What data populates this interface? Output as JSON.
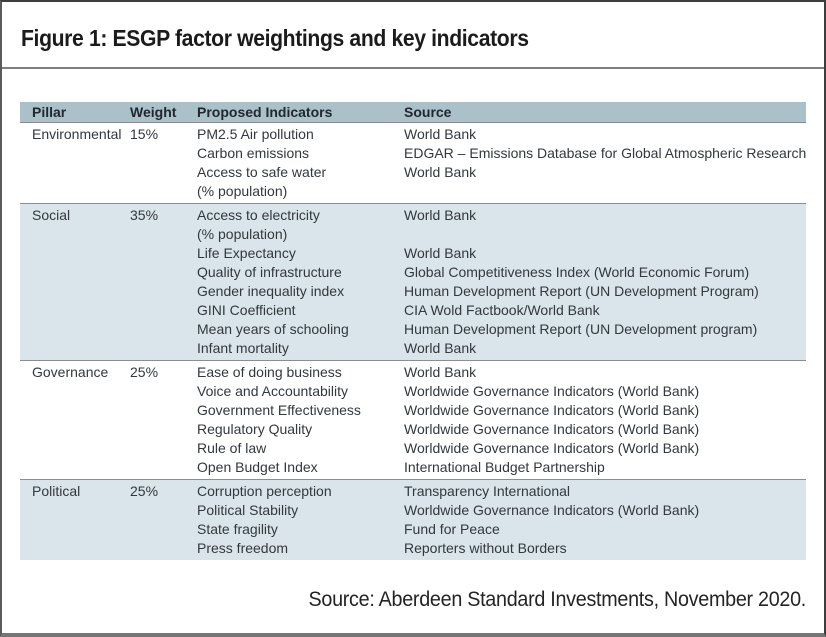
{
  "figure": {
    "title": "Figure 1: ESGP factor weightings and key indicators",
    "source_note": "Source: Aberdeen Standard Investments, November 2020."
  },
  "colors": {
    "header_band": "#aac1ca",
    "shaded_row": "#d9e5ea",
    "divider": "#8d8d8d",
    "body_text": "#33383d",
    "frame_border": "#3d3d3d"
  },
  "table": {
    "columns": [
      "Pillar",
      "Weight",
      "Proposed Indicators",
      "Source"
    ],
    "sections": [
      {
        "pillar": "Environmental",
        "weight": "15%",
        "shaded": false,
        "rows": [
          {
            "indicator": "PM2.5 Air pollution",
            "source": "World Bank"
          },
          {
            "indicator": "Carbon emissions",
            "source": "EDGAR – Emissions Database for Global Atmospheric Research"
          },
          {
            "indicator": "Access to safe water",
            "source": "World Bank"
          },
          {
            "indicator": "(% population)",
            "source": ""
          }
        ]
      },
      {
        "pillar": "Social",
        "weight": "35%",
        "shaded": true,
        "rows": [
          {
            "indicator": "Access to electricity",
            "source": "World Bank"
          },
          {
            "indicator": "(% population)",
            "source": ""
          },
          {
            "indicator": "Life Expectancy",
            "source": "World Bank"
          },
          {
            "indicator": "Quality of infrastructure",
            "source": "Global Competitiveness Index (World Economic Forum)"
          },
          {
            "indicator": "Gender inequality index",
            "source": "Human Development Report (UN Development Program)"
          },
          {
            "indicator": "GINI Coefficient",
            "source": "CIA Wold Factbook/World Bank"
          },
          {
            "indicator": "Mean years of schooling",
            "source": "Human Development Report (UN Development program)"
          },
          {
            "indicator": "Infant mortality",
            "source": "World Bank"
          }
        ]
      },
      {
        "pillar": "Governance",
        "weight": "25%",
        "shaded": false,
        "rows": [
          {
            "indicator": "Ease of doing business",
            "source": "World Bank"
          },
          {
            "indicator": "Voice and Accountability",
            "source": "Worldwide Governance Indicators (World Bank)"
          },
          {
            "indicator": "Government Effectiveness",
            "source": "Worldwide Governance Indicators (World Bank)"
          },
          {
            "indicator": "Regulatory Quality",
            "source": "Worldwide Governance Indicators (World Bank)"
          },
          {
            "indicator": "Rule of law",
            "source": "Worldwide Governance Indicators (World Bank)"
          },
          {
            "indicator": "Open Budget Index",
            "source": "International Budget Partnership"
          }
        ]
      },
      {
        "pillar": "Political",
        "weight": "25%",
        "shaded": true,
        "rows": [
          {
            "indicator": "Corruption perception",
            "source": "Transparency International"
          },
          {
            "indicator": "Political Stability",
            "source": "Worldwide Governance Indicators (World Bank)"
          },
          {
            "indicator": "State fragility",
            "source": "Fund for Peace"
          },
          {
            "indicator": "Press freedom",
            "source": "Reporters without Borders"
          }
        ]
      }
    ]
  }
}
